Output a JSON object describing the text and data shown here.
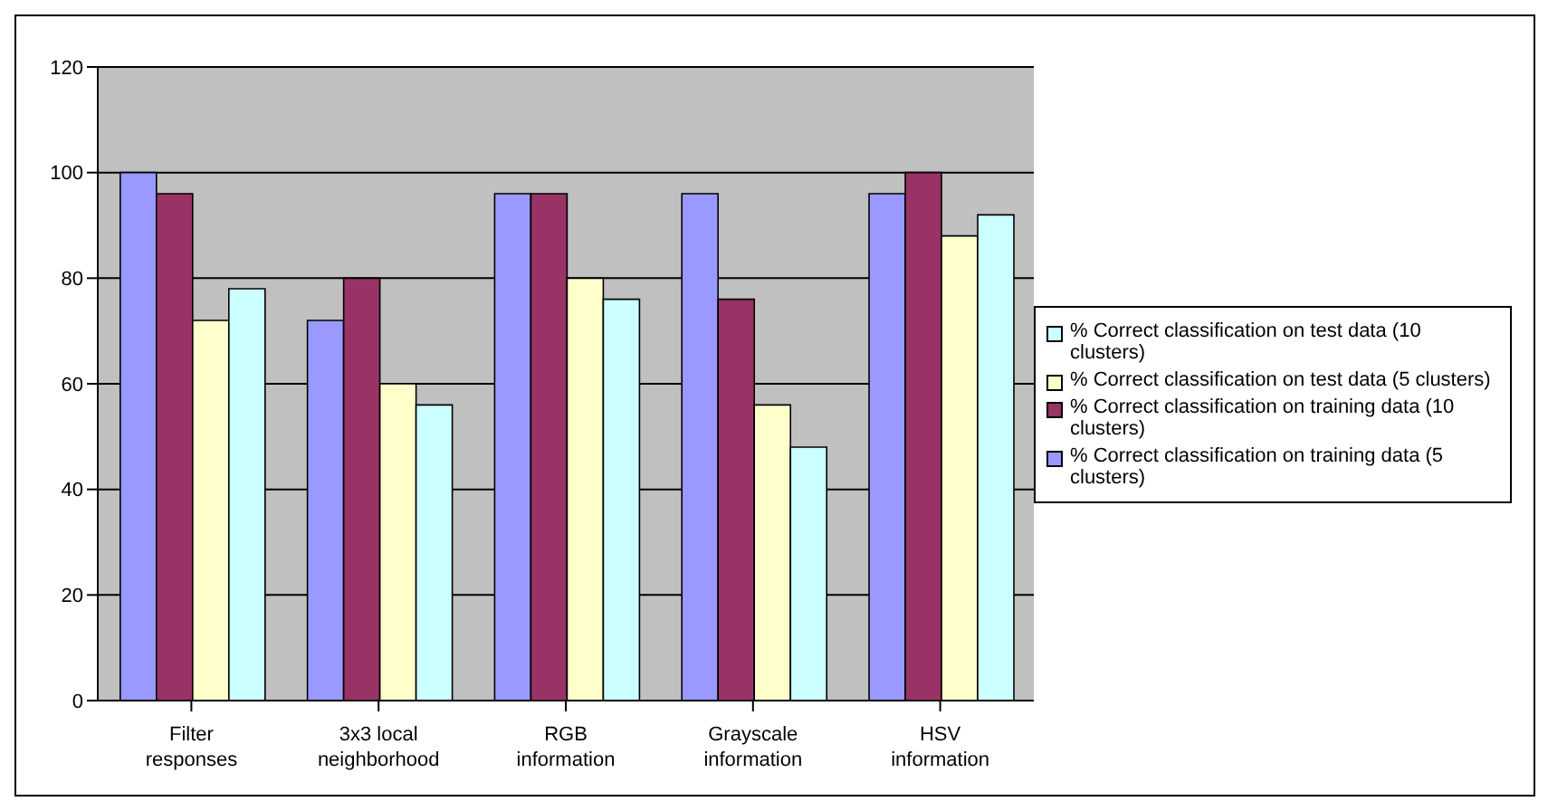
{
  "chart_data": {
    "type": "bar",
    "categories": [
      "Filter responses",
      "3x3 local neighborhood",
      "RGB information",
      "Grayscale information",
      "HSV information"
    ],
    "series": [
      {
        "name": "% Correct classification on training data (5 clusters)",
        "color": "#9999ff",
        "values": [
          100,
          72,
          96,
          96,
          96
        ]
      },
      {
        "name": "% Correct classification on training data (10 clusters)",
        "color": "#993366",
        "values": [
          96,
          80,
          96,
          76,
          100
        ]
      },
      {
        "name": "% Correct classification on test data (5 clusters)",
        "color": "#ffffcc",
        "values": [
          72,
          60,
          80,
          56,
          88
        ]
      },
      {
        "name": "% Correct classification on test data (10 clusters)",
        "color": "#ccffff",
        "values": [
          78,
          56,
          76,
          48,
          92
        ]
      }
    ],
    "ylim": [
      0,
      120
    ],
    "yticks": [
      0,
      20,
      40,
      60,
      80,
      100,
      120
    ],
    "grid": "y",
    "legend": "right"
  }
}
